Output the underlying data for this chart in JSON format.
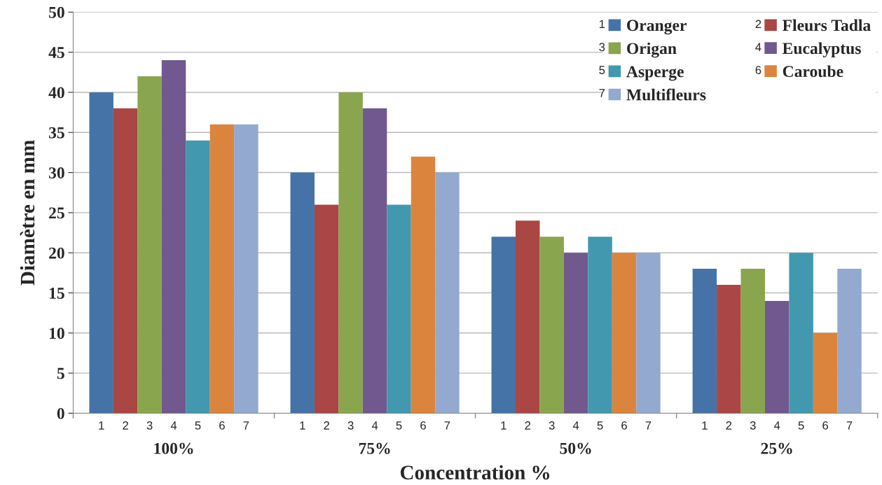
{
  "chart_data": {
    "type": "bar",
    "xlabel": "Concentration %",
    "ylabel": "Diamètre en mm",
    "categories": [
      "100%",
      "75%",
      "50%",
      "25%"
    ],
    "series": [
      {
        "name": "Oranger",
        "color": "#4573a7",
        "values": [
          40,
          30,
          22,
          18
        ]
      },
      {
        "name": "Fleurs Tadla",
        "color": "#aa4643",
        "values": [
          38,
          26,
          24,
          16
        ]
      },
      {
        "name": "Origan",
        "color": "#89a54e",
        "values": [
          42,
          40,
          22,
          18
        ]
      },
      {
        "name": "Eucalyptus",
        "color": "#71588f",
        "values": [
          44,
          38,
          20,
          14
        ]
      },
      {
        "name": "Asperge",
        "color": "#4198af",
        "values": [
          34,
          26,
          22,
          20
        ]
      },
      {
        "name": "Caroube",
        "color": "#db843d",
        "values": [
          36,
          32,
          20,
          10
        ]
      },
      {
        "name": "Multifleurs",
        "color": "#93a9cf",
        "values": [
          36,
          30,
          20,
          18
        ]
      }
    ],
    "ylim": [
      0,
      50
    ],
    "yticks": [
      0,
      5,
      10,
      15,
      20,
      25,
      30,
      35,
      40,
      45,
      50
    ],
    "grid": "y",
    "legend": "top right",
    "annotations": [
      "1",
      "2",
      "3",
      "4",
      "5",
      "6",
      "7",
      "1",
      "2",
      "3",
      "4",
      "5",
      "6",
      "7",
      "1",
      "2",
      "3",
      "4",
      "5",
      "6",
      "7",
      "1",
      "2",
      "3",
      "4",
      "5",
      "6",
      "7"
    ]
  }
}
